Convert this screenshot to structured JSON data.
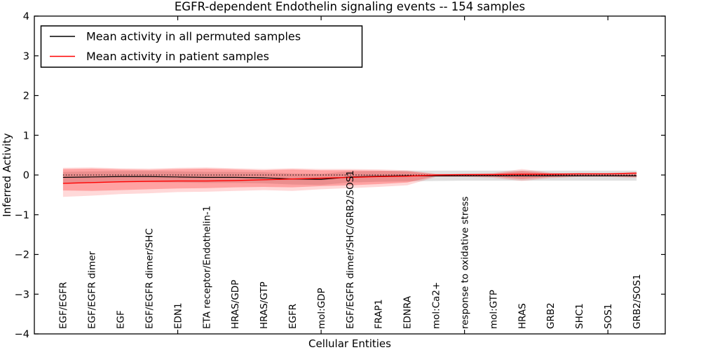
{
  "title": "EGFR-dependent Endothelin signaling events -- 154 samples",
  "legend": {
    "entries": [
      {
        "label": "Mean activity in all permuted samples",
        "color": "#000000"
      },
      {
        "label": "Mean activity in patient samples",
        "color": "#ff0000"
      }
    ],
    "position": "upper left"
  },
  "chart_data": {
    "type": "line",
    "title": "EGFR-dependent Endothelin signaling events -- 154 samples",
    "xlabel": "Cellular Entities",
    "ylabel": "Inferred Activity",
    "xlim": [
      0,
      22
    ],
    "ylim": [
      -4,
      4
    ],
    "yticks": [
      4,
      3,
      2,
      1,
      0,
      -1,
      -2,
      -3,
      -4
    ],
    "xticks_at": [
      5,
      10,
      15,
      20
    ],
    "grid": false,
    "legend_position": "upper left",
    "x": [
      1,
      2,
      3,
      4,
      5,
      6,
      7,
      8,
      9,
      10,
      11,
      12,
      13,
      14,
      15,
      16,
      17,
      18,
      19,
      20,
      21
    ],
    "categories": [
      "EGF/EGFR",
      "EGF/EGFR dimer",
      "EGF",
      "EGF/EGFR dimer/SHC",
      "EDN1",
      "ETA receptor/Endothelin-1",
      "HRAS/GDP",
      "HRAS/GTP",
      "EGFR",
      "mol:GDP",
      "EGF/EGFR dimer/SHC/GRB2/SOS1",
      "FRAP1",
      "EDNRA",
      "mol:Ca2+",
      "response to oxidative stress",
      "mol:GTP",
      "HRAS",
      "GRB2",
      "SHC1",
      "SOS1",
      "GRB2/SOS1"
    ],
    "series": [
      {
        "name": "Mean activity in all permuted samples",
        "color": "#000000",
        "width": 1.2,
        "values": [
          -0.06,
          -0.05,
          -0.04,
          -0.04,
          -0.05,
          -0.06,
          -0.06,
          -0.07,
          -0.1,
          -0.11,
          -0.05,
          -0.03,
          -0.02,
          -0.02,
          -0.02,
          -0.02,
          -0.02,
          -0.02,
          -0.02,
          -0.02,
          -0.02
        ]
      },
      {
        "name": "Mean activity in patient samples",
        "color": "#ff0000",
        "width": 1.4,
        "values": [
          -0.21,
          -0.19,
          -0.17,
          -0.16,
          -0.15,
          -0.15,
          -0.14,
          -0.12,
          -0.1,
          -0.08,
          -0.06,
          -0.04,
          -0.03,
          0.0,
          0.01,
          0.01,
          0.02,
          0.02,
          0.03,
          0.03,
          0.05
        ]
      }
    ],
    "bands": [
      {
        "name": "permuted-samples-std-band",
        "color": "#000000",
        "opacity": 0.12,
        "upper": [
          0.08,
          0.09,
          0.1,
          0.1,
          0.09,
          0.08,
          0.08,
          0.07,
          0.04,
          0.03,
          0.09,
          0.1,
          0.11,
          0.11,
          0.11,
          0.11,
          0.11,
          0.11,
          0.11,
          0.11,
          0.11
        ],
        "lower": [
          -0.2,
          -0.19,
          -0.18,
          -0.18,
          -0.19,
          -0.2,
          -0.2,
          -0.21,
          -0.24,
          -0.25,
          -0.19,
          -0.17,
          -0.16,
          -0.15,
          -0.14,
          -0.14,
          -0.14,
          -0.14,
          -0.14,
          -0.14,
          -0.14
        ]
      },
      {
        "name": "patient-samples-outer-band",
        "color": "#ff0000",
        "opacity": 0.15,
        "upper": [
          0.18,
          0.19,
          0.17,
          0.16,
          0.18,
          0.19,
          0.17,
          0.15,
          0.17,
          0.15,
          0.15,
          0.14,
          0.12,
          0.03,
          0.03,
          0.05,
          0.15,
          0.06,
          0.04,
          0.04,
          0.06
        ],
        "lower": [
          -0.55,
          -0.52,
          -0.48,
          -0.46,
          -0.43,
          -0.42,
          -0.4,
          -0.38,
          -0.4,
          -0.36,
          -0.33,
          -0.3,
          -0.26,
          -0.05,
          -0.05,
          -0.07,
          -0.15,
          -0.08,
          -0.05,
          -0.05,
          -0.07
        ]
      },
      {
        "name": "patient-samples-inner-band",
        "color": "#ff0000",
        "opacity": 0.25,
        "upper": [
          0.15,
          0.16,
          0.14,
          0.13,
          0.15,
          0.16,
          0.14,
          0.12,
          0.14,
          0.12,
          0.12,
          0.11,
          0.09,
          0.02,
          0.02,
          0.03,
          0.1,
          0.04,
          0.03,
          0.03,
          0.04
        ],
        "lower": [
          -0.39,
          -0.4,
          -0.38,
          -0.36,
          -0.34,
          -0.33,
          -0.31,
          -0.3,
          -0.31,
          -0.28,
          -0.26,
          -0.23,
          -0.19,
          -0.03,
          -0.03,
          -0.04,
          -0.1,
          -0.05,
          -0.03,
          -0.03,
          -0.05
        ]
      }
    ],
    "zero_line": {
      "y": 0,
      "style": "dotted",
      "color": "#000000"
    }
  }
}
